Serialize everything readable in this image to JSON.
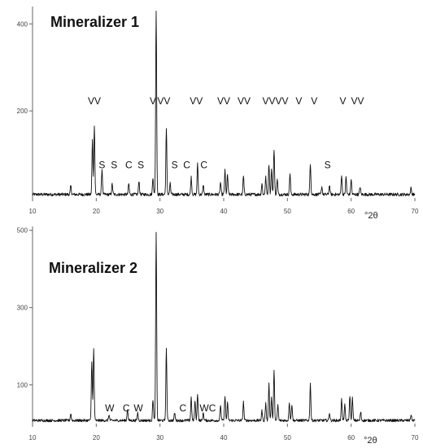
{
  "chart_data": [
    {
      "type": "line",
      "title": "Mineralizer 1",
      "xlabel": "°2θ",
      "ylabel": "",
      "xlim": [
        10,
        70
      ],
      "ylim": [
        0,
        440
      ],
      "x_ticks": [
        10,
        20,
        30,
        40,
        50,
        60,
        70
      ],
      "y_ticks": [
        200,
        400
      ],
      "baseline": 8,
      "peaks": [
        {
          "x": 16.0,
          "y": 20
        },
        {
          "x": 19.4,
          "y": 125
        },
        {
          "x": 19.7,
          "y": 160
        },
        {
          "x": 20.9,
          "y": 58
        },
        {
          "x": 22.5,
          "y": 24
        },
        {
          "x": 25.1,
          "y": 25
        },
        {
          "x": 26.7,
          "y": 32
        },
        {
          "x": 28.9,
          "y": 40
        },
        {
          "x": 29.4,
          "y": 425
        },
        {
          "x": 31.0,
          "y": 150
        },
        {
          "x": 31.6,
          "y": 25
        },
        {
          "x": 34.9,
          "y": 40
        },
        {
          "x": 35.9,
          "y": 70
        },
        {
          "x": 36.8,
          "y": 22
        },
        {
          "x": 39.5,
          "y": 28
        },
        {
          "x": 40.2,
          "y": 55
        },
        {
          "x": 40.6,
          "y": 45
        },
        {
          "x": 43.1,
          "y": 42
        },
        {
          "x": 46.0,
          "y": 25
        },
        {
          "x": 46.6,
          "y": 40
        },
        {
          "x": 47.1,
          "y": 70
        },
        {
          "x": 47.5,
          "y": 58
        },
        {
          "x": 47.9,
          "y": 105
        },
        {
          "x": 48.4,
          "y": 35
        },
        {
          "x": 50.4,
          "y": 48
        },
        {
          "x": 53.6,
          "y": 72
        },
        {
          "x": 55.4,
          "y": 18
        },
        {
          "x": 56.6,
          "y": 22
        },
        {
          "x": 58.5,
          "y": 45
        },
        {
          "x": 59.2,
          "y": 40
        },
        {
          "x": 60.0,
          "y": 35
        },
        {
          "x": 61.4,
          "y": 18
        },
        {
          "x": 69.4,
          "y": 15
        }
      ],
      "annotations": [
        {
          "text": "VV",
          "x": 19.7,
          "y": 215
        },
        {
          "text": "V",
          "x": 28.9,
          "y": 215
        },
        {
          "text": "VV",
          "x": 30.6,
          "y": 215
        },
        {
          "text": "VV",
          "x": 35.7,
          "y": 215
        },
        {
          "text": "VV",
          "x": 40.0,
          "y": 215
        },
        {
          "text": "VV",
          "x": 43.2,
          "y": 215
        },
        {
          "text": "VVVV",
          "x": 48.1,
          "y": 215
        },
        {
          "text": "V",
          "x": 51.8,
          "y": 215
        },
        {
          "text": "V",
          "x": 54.2,
          "y": 215
        },
        {
          "text": "V",
          "x": 58.7,
          "y": 215
        },
        {
          "text": "VV",
          "x": 61.0,
          "y": 215
        },
        {
          "text": "S",
          "x": 20.9,
          "y": 68
        },
        {
          "text": "S",
          "x": 22.8,
          "y": 68
        },
        {
          "text": "C",
          "x": 25.1,
          "y": 68
        },
        {
          "text": "S",
          "x": 27.0,
          "y": 68
        },
        {
          "text": "S",
          "x": 32.3,
          "y": 68
        },
        {
          "text": "C",
          "x": 34.2,
          "y": 68
        },
        {
          "text": "C",
          "x": 36.9,
          "y": 68
        },
        {
          "text": "S",
          "x": 56.3,
          "y": 68
        }
      ]
    },
    {
      "type": "line",
      "title": "Mineralizer 2",
      "xlabel": "°2θ",
      "ylabel": "",
      "xlim": [
        10,
        70
      ],
      "ylim": [
        0,
        510
      ],
      "x_ticks": [
        10,
        20,
        30,
        40,
        50,
        60,
        70
      ],
      "y_ticks": [
        100,
        300,
        500
      ],
      "baseline": 8,
      "peaks": [
        {
          "x": 16.0,
          "y": 18
        },
        {
          "x": 19.3,
          "y": 155
        },
        {
          "x": 19.6,
          "y": 185
        },
        {
          "x": 22.0,
          "y": 15
        },
        {
          "x": 24.9,
          "y": 30
        },
        {
          "x": 26.5,
          "y": 20
        },
        {
          "x": 28.9,
          "y": 55
        },
        {
          "x": 29.4,
          "y": 485
        },
        {
          "x": 31.0,
          "y": 185
        },
        {
          "x": 32.3,
          "y": 20
        },
        {
          "x": 34.9,
          "y": 60
        },
        {
          "x": 35.5,
          "y": 50
        },
        {
          "x": 35.9,
          "y": 70
        },
        {
          "x": 36.8,
          "y": 20
        },
        {
          "x": 39.5,
          "y": 40
        },
        {
          "x": 40.2,
          "y": 65
        },
        {
          "x": 40.6,
          "y": 45
        },
        {
          "x": 43.1,
          "y": 48
        },
        {
          "x": 46.0,
          "y": 25
        },
        {
          "x": 46.6,
          "y": 45
        },
        {
          "x": 47.1,
          "y": 95
        },
        {
          "x": 47.5,
          "y": 60
        },
        {
          "x": 47.9,
          "y": 128
        },
        {
          "x": 48.5,
          "y": 40
        },
        {
          "x": 50.3,
          "y": 48
        },
        {
          "x": 50.7,
          "y": 42
        },
        {
          "x": 53.6,
          "y": 95
        },
        {
          "x": 56.6,
          "y": 20
        },
        {
          "x": 58.5,
          "y": 55
        },
        {
          "x": 59.0,
          "y": 40
        },
        {
          "x": 59.8,
          "y": 65
        },
        {
          "x": 60.2,
          "y": 58
        },
        {
          "x": 61.5,
          "y": 22
        },
        {
          "x": 69.4,
          "y": 15
        }
      ],
      "annotations": [
        {
          "text": "W",
          "x": 22.1,
          "y": 32
        },
        {
          "text": "C",
          "x": 24.7,
          "y": 32
        },
        {
          "text": "W",
          "x": 26.6,
          "y": 32
        },
        {
          "text": "C",
          "x": 33.6,
          "y": 32
        },
        {
          "text": "WC",
          "x": 37.5,
          "y": 32
        }
      ]
    }
  ]
}
